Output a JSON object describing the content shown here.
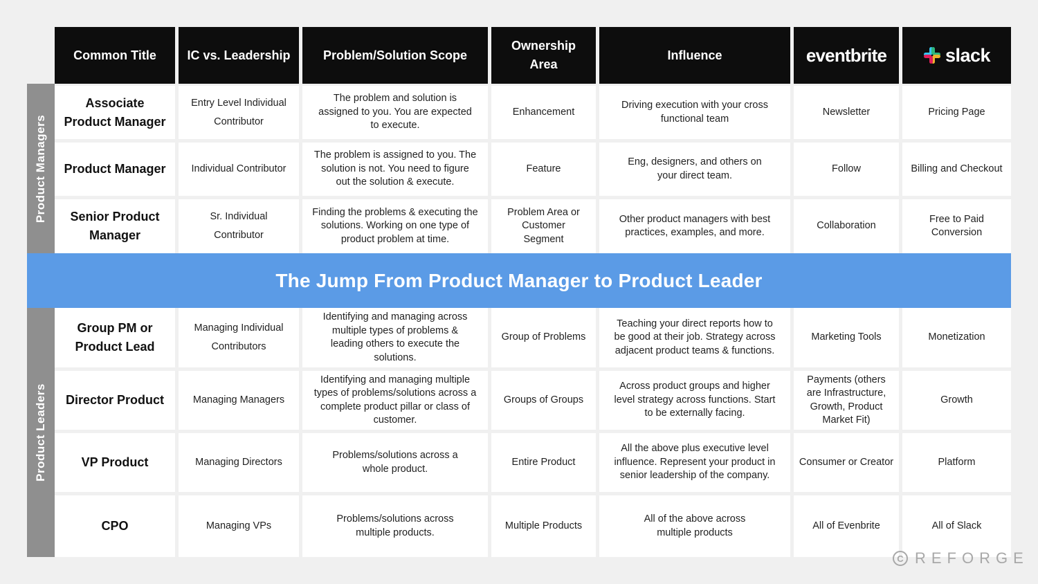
{
  "colors": {
    "header_bg": "#0d0d0d",
    "banner_bg": "#5b9be6",
    "sidebar_bg": "#8f8f8f",
    "cell_bg": "#ffffff",
    "page_bg": "#f0f0f0"
  },
  "headers": {
    "common_title": "Common Title",
    "ic_vs_leadership": "IC vs. Leadership",
    "scope": "Problem/Solution Scope",
    "ownership": "Ownership Area",
    "influence": "Influence",
    "eventbrite_logo": "eventbrite",
    "slack_logo": "slack"
  },
  "groups": {
    "managers_label": "Product Managers",
    "leaders_label": "Product Leaders"
  },
  "banner": "The Jump From Product Manager to Product Leader",
  "rows": [
    {
      "title": "Associate Product Manager",
      "ic": "Entry Level Individual Contributor",
      "scope": "The problem and solution is assigned to you. You are expected to execute.",
      "ownership": "Enhancement",
      "influence": "Driving execution with your cross functional team",
      "eventbrite": "Newsletter",
      "slack": "Pricing Page"
    },
    {
      "title": "Product Manager",
      "ic": "Individual Contributor",
      "scope": "The problem is assigned to you. The solution is not. You need to figure out the solution & execute.",
      "ownership": "Feature",
      "influence": "Eng, designers, and others on your direct team.",
      "eventbrite": "Follow",
      "slack": "Billing and Checkout"
    },
    {
      "title": "Senior Product Manager",
      "ic": "Sr. Individual Contributor",
      "scope": "Finding the problems & executing the solutions. Working on one type of product problem at time.",
      "ownership": "Problem Area or Customer Segment",
      "influence": "Other product managers with best practices, examples, and more.",
      "eventbrite": "Collaboration",
      "slack": "Free to Paid Conversion"
    },
    {
      "title": "Group PM or Product Lead",
      "ic": "Managing Individual Contributors",
      "scope": "Identifying and managing across multiple types of problems & leading others to execute the solutions.",
      "ownership": "Group of Problems",
      "influence": "Teaching your direct reports how to be good at their job. Strategy across adjacent product teams & functions.",
      "eventbrite": "Marketing Tools",
      "slack": "Monetization"
    },
    {
      "title": "Director Product",
      "ic": "Managing Managers",
      "scope": "Identifying and managing multiple types of problems/solutions across a complete product pillar or class of customer.",
      "ownership": "Groups of Groups",
      "influence": "Across product groups and higher level strategy across functions. Start to be externally facing.",
      "eventbrite": "Payments (others are Infrastructure, Growth, Product Market Fit)",
      "slack": "Growth"
    },
    {
      "title": "VP Product",
      "ic": "Managing Directors",
      "scope": "Problems/solutions across a whole product.",
      "ownership": "Entire Product",
      "influence": "All the above plus executive level influence. Represent your product in senior leadership of the company.",
      "eventbrite": "Consumer or Creator",
      "slack": "Platform"
    },
    {
      "title": "CPO",
      "ic": "Managing VPs",
      "scope": "Problems/solutions across multiple products.",
      "ownership": "Multiple Products",
      "influence": "All of the above across multiple products",
      "eventbrite": "All of Evenbrite",
      "slack": "All of Slack"
    }
  ],
  "watermark": "REFORGE"
}
